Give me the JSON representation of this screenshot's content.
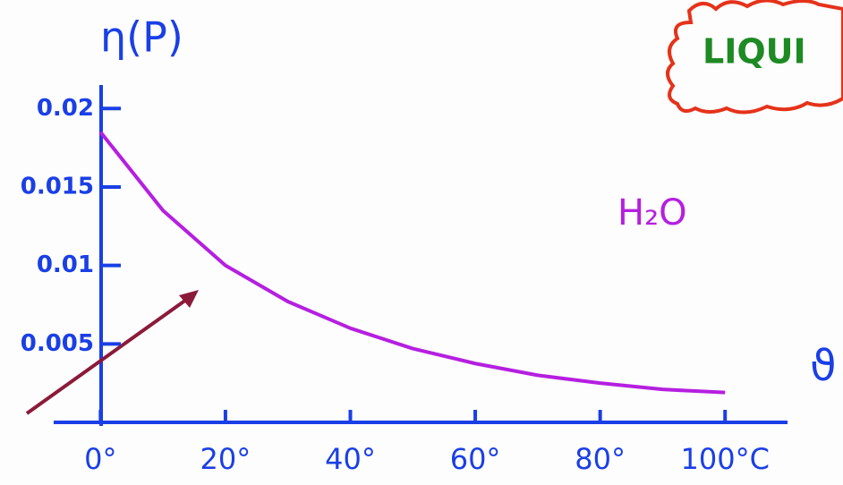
{
  "chart_data": {
    "type": "line",
    "y_label": "η(P)",
    "x_label": "ϑ",
    "annotation": "H₂O",
    "box_label": "LIQUI",
    "x": [
      0,
      10,
      20,
      30,
      40,
      50,
      60,
      70,
      80,
      90,
      100
    ],
    "series": [
      {
        "color": "#b51fe0",
        "values": [
          0.0185,
          0.0135,
          0.01,
          0.0077,
          0.006,
          0.0047,
          0.00375,
          0.003,
          0.0025,
          0.0021,
          0.0019
        ]
      }
    ],
    "xlim": [
      -7.5,
      110
    ],
    "ylim": [
      0,
      0.0215
    ],
    "xticks": [
      {
        "value": 0,
        "label": "0°"
      },
      {
        "value": 20,
        "label": "20°"
      },
      {
        "value": 40,
        "label": "40°"
      },
      {
        "value": 60,
        "label": "60°"
      },
      {
        "value": 80,
        "label": "80°"
      },
      {
        "value": 100,
        "label": "100°C"
      }
    ],
    "yticks": [
      {
        "value": 0.005,
        "label": "0.005"
      },
      {
        "value": 0.01,
        "label": "0.01"
      },
      {
        "value": 0.015,
        "label": "0.015"
      },
      {
        "value": 0.02,
        "label": "0.02"
      }
    ]
  }
}
